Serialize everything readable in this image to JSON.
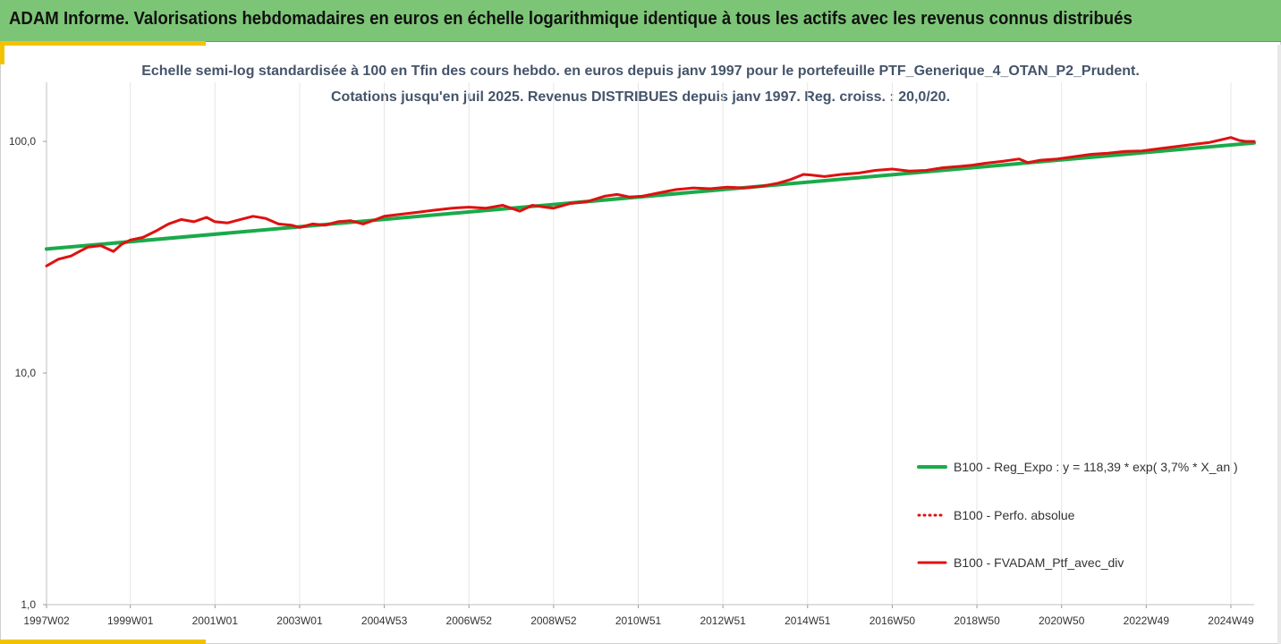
{
  "header": {
    "title": "ADAM Informe. Valorisations hebdomadaires en euros en échelle logarithmique identique à tous les actifs avec les revenus connus distribués"
  },
  "colors": {
    "header_bg": "#7cc576",
    "accent": "#f2c200",
    "regression": "#1aaa4a",
    "series": "#e01010",
    "subtitle": "#44546a"
  },
  "chart_data": {
    "type": "line",
    "subtitle_lines": [
      "Echelle semi-log standardisée à 100 en Tfin des cours hebdo.  en euros depuis janv 1997 pour le portefeuille PTF_Generique_4_OTAN_P2_Prudent.",
      "Cotations  jusqu'en juil 2025. Revenus DISTRIBUES depuis janv 1997. Reg. croiss. : 20,0/20."
    ],
    "y_scale": "log",
    "ylim": [
      1,
      180
    ],
    "y_ticks": [
      {
        "value": 1,
        "label": "1,0"
      },
      {
        "value": 10,
        "label": "10,0"
      },
      {
        "value": 100,
        "label": "100,0"
      }
    ],
    "x_range": [
      1997.02,
      2025.55
    ],
    "x_ticks": [
      {
        "x": 1997.02,
        "label": "1997W02"
      },
      {
        "x": 1999.0,
        "label": "1999W01"
      },
      {
        "x": 2001.0,
        "label": "2001W01"
      },
      {
        "x": 2003.0,
        "label": "2003W01"
      },
      {
        "x": 2005.0,
        "label": "2004W53"
      },
      {
        "x": 2007.0,
        "label": "2006W52"
      },
      {
        "x": 2009.0,
        "label": "2008W52"
      },
      {
        "x": 2011.0,
        "label": "2010W51"
      },
      {
        "x": 2013.0,
        "label": "2012W51"
      },
      {
        "x": 2015.0,
        "label": "2014W51"
      },
      {
        "x": 2017.0,
        "label": "2016W50"
      },
      {
        "x": 2019.0,
        "label": "2018W50"
      },
      {
        "x": 2021.0,
        "label": "2020W50"
      },
      {
        "x": 2023.0,
        "label": "2022W49"
      },
      {
        "x": 2025.0,
        "label": "2024W49"
      }
    ],
    "grid": "vertical",
    "legend_position": "bottom-right",
    "series": [
      {
        "name": "B100 - Reg_Expo : y = 118,39 * exp( 3,7% *  X_an )",
        "style": "solid-thick",
        "color": "#1aaa4a",
        "x": [
          1997.02,
          2025.55
        ],
        "y": [
          34.3,
          98.5
        ]
      },
      {
        "name": "B100 - Perfo. absolue",
        "style": "dotted",
        "color": "#e01010",
        "x": [],
        "y": []
      },
      {
        "name": "B100 - FVADAM_Ptf_avec_div",
        "style": "solid",
        "color": "#e01010",
        "x": [
          1997.02,
          1997.3,
          1997.6,
          1997.8,
          1998.0,
          1998.3,
          1998.6,
          1998.8,
          1999.0,
          1999.3,
          1999.6,
          1999.9,
          2000.2,
          2000.5,
          2000.8,
          2001.0,
          2001.3,
          2001.6,
          2001.9,
          2002.2,
          2002.5,
          2002.8,
          2003.0,
          2003.3,
          2003.6,
          2003.9,
          2004.2,
          2004.5,
          2004.8,
          2005.0,
          2005.4,
          2005.8,
          2006.2,
          2006.6,
          2007.0,
          2007.4,
          2007.8,
          2008.2,
          2008.5,
          2008.8,
          2009.0,
          2009.4,
          2009.8,
          2010.2,
          2010.5,
          2010.8,
          2011.1,
          2011.5,
          2011.9,
          2012.3,
          2012.7,
          2013.1,
          2013.5,
          2013.9,
          2014.3,
          2014.6,
          2014.9,
          2015.1,
          2015.4,
          2015.8,
          2016.2,
          2016.6,
          2017.0,
          2017.4,
          2017.8,
          2018.2,
          2018.6,
          2018.9,
          2019.2,
          2019.6,
          2020.0,
          2020.2,
          2020.5,
          2020.9,
          2021.3,
          2021.7,
          2022.1,
          2022.5,
          2022.9,
          2023.3,
          2023.7,
          2024.1,
          2024.5,
          2024.8,
          2025.0,
          2025.2,
          2025.35,
          2025.55
        ],
        "y": [
          29,
          31,
          32,
          33.5,
          35,
          35.5,
          33.5,
          36,
          37.5,
          38.5,
          41,
          44,
          46,
          45,
          47,
          45,
          44.5,
          46,
          47.5,
          46.5,
          44,
          43.5,
          42.5,
          44,
          43.5,
          45,
          45.5,
          44,
          46,
          47.5,
          48.5,
          49.5,
          50.5,
          51.5,
          52,
          51.5,
          53,
          50,
          53,
          52,
          51.5,
          54,
          55,
          58,
          59,
          57.5,
          58,
          60,
          62,
          63,
          62.5,
          63.5,
          63,
          64,
          66,
          68.5,
          72,
          71.5,
          70.5,
          72,
          73,
          75,
          76,
          74.5,
          75,
          77,
          78,
          79,
          80.5,
          82,
          84,
          81,
          83,
          84,
          86,
          88,
          89,
          90.5,
          91,
          93,
          95,
          97,
          99,
          102,
          104,
          101,
          100,
          100
        ]
      }
    ]
  }
}
